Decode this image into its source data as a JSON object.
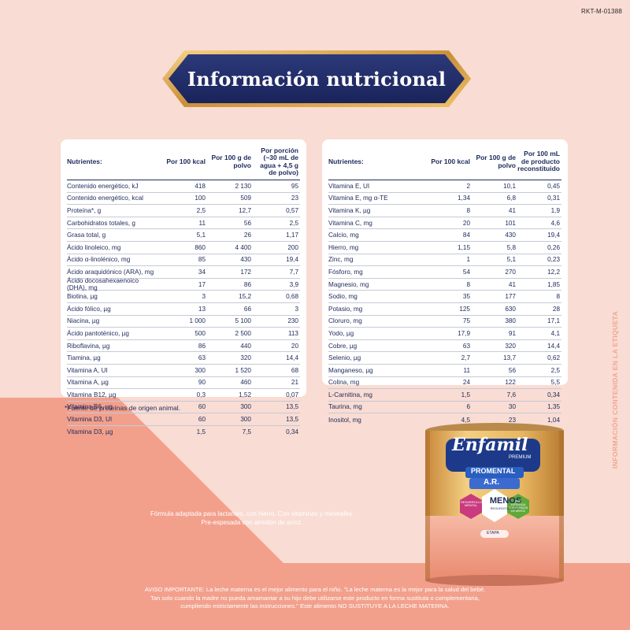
{
  "code": "RKT-M-01388",
  "title": "Información nutricional",
  "left_table": {
    "headers": [
      "Nutrientes:",
      "Por 100 kcal",
      "Por 100 g de polvo",
      "Por porción (~30 mL de agua + 4,5 g de polvo)"
    ],
    "rows": [
      [
        "Contenido energético, kJ",
        "418",
        "2 130",
        "95"
      ],
      [
        "Contenido energético, kcal",
        "100",
        "509",
        "23"
      ],
      [
        "Proteína*, g",
        "2,5",
        "12,7",
        "0,57"
      ],
      [
        "Carbohidratos totales, g",
        "11",
        "56",
        "2,5"
      ],
      [
        "Grasa total, g",
        "5,1",
        "26",
        "1,17"
      ],
      [
        "Ácido linoleico, mg",
        "860",
        "4 400",
        "200"
      ],
      [
        "Ácido α-linolénico, mg",
        "85",
        "430",
        "19,4"
      ],
      [
        "Ácido araquidónico (ARA), mg",
        "34",
        "172",
        "7,7"
      ],
      [
        "Ácido docosahexaenoico (DHA), mg",
        "17",
        "86",
        "3,9"
      ],
      [
        "Biotina, µg",
        "3",
        "15,2",
        "0,68"
      ],
      [
        "Ácido fólico, µg",
        "13",
        "66",
        "3"
      ],
      [
        "Niacina, µg",
        "1 000",
        "5 100",
        "230"
      ],
      [
        "Ácido pantoténico, µg",
        "500",
        "2 500",
        "113"
      ],
      [
        "Riboflavina, µg",
        "86",
        "440",
        "20"
      ],
      [
        "Tiamina, µg",
        "63",
        "320",
        "14,4"
      ],
      [
        "Vitamina A, UI",
        "300",
        "1 520",
        "68"
      ],
      [
        "Vitamina A, µg",
        "90",
        "460",
        "21"
      ],
      [
        "Vitamina B12, µg",
        "0,3",
        "1,52",
        "0,07"
      ],
      [
        "Vitamina B6, µg",
        "60",
        "300",
        "13,5"
      ],
      [
        "Vitamina D3, UI",
        "60",
        "300",
        "13,5"
      ],
      [
        "Vitamina D3, µg",
        "1,5",
        "7,5",
        "0,34"
      ]
    ]
  },
  "right_table": {
    "headers": [
      "Nutrientes:",
      "Por 100 kcal",
      "Por 100 g de polvo",
      "Por 100 mL de producto reconstituido"
    ],
    "rows": [
      [
        "Vitamina E, UI",
        "2",
        "10,1",
        "0,45"
      ],
      [
        "Vitamina E, mg α-TE",
        "1,34",
        "6,8",
        "0,31"
      ],
      [
        "Vitamina K, µg",
        "8",
        "41",
        "1,9"
      ],
      [
        "Vitamina C, mg",
        "20",
        "101",
        "4,6"
      ],
      [
        "Calcio, mg",
        "84",
        "430",
        "19,4"
      ],
      [
        "Hierro, mg",
        "1,15",
        "5,8",
        "0,26"
      ],
      [
        "Zinc, mg",
        "1",
        "5,1",
        "0,23"
      ],
      [
        "Fósforo, mg",
        "54",
        "270",
        "12,2"
      ],
      [
        "Magnesio, mg",
        "8",
        "41",
        "1,85"
      ],
      [
        "Sodio, mg",
        "35",
        "177",
        "8"
      ],
      [
        "Potasio, mg",
        "125",
        "630",
        "28"
      ],
      [
        "Cloruro, mg",
        "75",
        "380",
        "17,1"
      ],
      [
        "Yodo, µg",
        "17,9",
        "91",
        "4,1"
      ],
      [
        "Cobre, µg",
        "63",
        "320",
        "14,4"
      ],
      [
        "Selenio, µg",
        "2,7",
        "13,7",
        "0,62"
      ],
      [
        "Manganeso, µg",
        "11",
        "56",
        "2,5"
      ],
      [
        "Colina, mg",
        "24",
        "122",
        "5,5"
      ],
      [
        "L-Carnitina, mg",
        "1,5",
        "7,6",
        "0,34"
      ],
      [
        "Taurina, mg",
        "6",
        "30",
        "1,35"
      ],
      [
        "Inositol, mg",
        "4,5",
        "23",
        "1,04"
      ]
    ]
  },
  "footnote": "*Fuente de proteínas de origen animal.",
  "side_text": "INFORMACIÓN CONTENIDA EN LA ETIQUETA",
  "formula_line1": "Fórmula adaptada para lactantes, con hierro. Con vitaminas y minerales.",
  "formula_line2": "Pre-espesada con almidón de arroz.",
  "notice_line1": "AVISO IMPORTANTE: La leche materna es el mejor alimento para el niño. \"La leche materna es la mejor para la salud del bebé.",
  "notice_line2": "Tan solo cuando la madre no pueda amamantar a su hijo debe utilizarse este producto en forma sustituta o complementaria,",
  "notice_line3": "cumpliendo estrictamente las instrucciones.\" Este alimento NO SUSTITUYE A LA LECHE MATERNA.",
  "product": {
    "brand": "Enfamil",
    "premium": "PREMIUM",
    "line": "PROMENTAL",
    "variant": "A.R.",
    "badge_left": "DESARROLLO MENTAL",
    "badge_center": "MENOS",
    "badge_center_sub": "REGURGITACIONES",
    "badge_right": "PRE-ESPESADA CON ALMIDÓN DE ARROZ",
    "stage": "ETAPA"
  },
  "colors": {
    "background": "#f9dcd3",
    "coral": "#f3a28f",
    "navy": "#1d2a5c",
    "gold": "#d6a24f"
  }
}
